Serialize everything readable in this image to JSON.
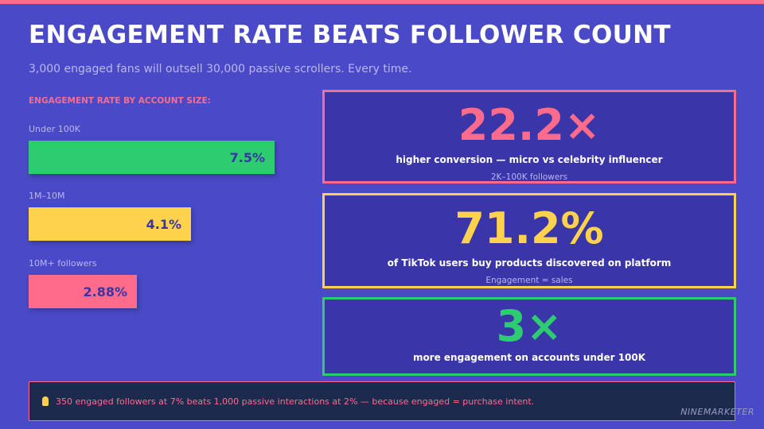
{
  "header": {
    "title": "ENGAGEMENT RATE BEATS FOLLOWER COUNT",
    "subtitle": "3,000 engaged fans will outsell 30,000 passive scrollers. Every time."
  },
  "chart_data": {
    "type": "bar",
    "orientation": "horizontal",
    "title": "ENGAGEMENT RATE BY ACCOUNT SIZE:",
    "categories": [
      "Under 100K",
      "1M–10M",
      "10M+ followers"
    ],
    "values": [
      7.5,
      4.1,
      2.88
    ],
    "data_labels": [
      "7.5%",
      "4.1%",
      "2.88%"
    ],
    "colors": [
      "#2ecc71",
      "#ffd24d",
      "#ff6b8b"
    ],
    "unit": "%"
  },
  "stats": [
    {
      "value": "22.2×",
      "description": "higher conversion — micro vs celebrity influencer",
      "note": "2K–100K followers",
      "color": "#ff6b8b"
    },
    {
      "value": "71.2%",
      "description": "of TikTok users buy products discovered on platform",
      "note": "Engagement = sales",
      "color": "#ffd24d"
    },
    {
      "value": "3×",
      "description": "more engagement on accounts under 100K",
      "color": "#2ecc71"
    }
  ],
  "footer": {
    "icon": "lightbulb-icon",
    "text": "350 engaged followers at 7% beats 1,000 passive interactions at 2% — because engaged = purchase intent."
  },
  "brand": "NINEMARKETER"
}
